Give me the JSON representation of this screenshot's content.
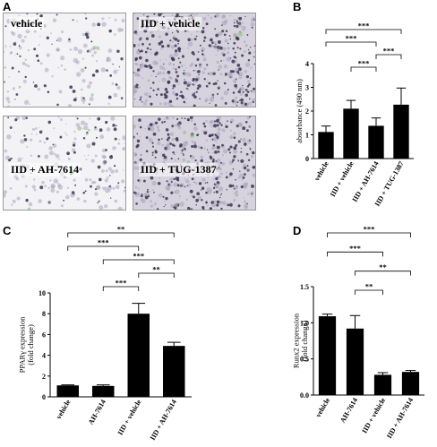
{
  "panel_letters": {
    "a": "A",
    "b": "B",
    "c": "C",
    "d": "D"
  },
  "images": [
    {
      "label": "vehicle",
      "density": 0.25
    },
    {
      "label": "IID + vehicle",
      "density": 1.0
    },
    {
      "label": "IID + AH-7614",
      "density": 0.35
    },
    {
      "label": "IID + TUG-1387",
      "density": 1.0
    }
  ],
  "chart_data": [
    {
      "panel": "B",
      "type": "bar",
      "title": "",
      "ylabel": "absorbance (490 nm)",
      "ylim": [
        0,
        4
      ],
      "yticks": [
        "0",
        "1",
        "2",
        "3",
        "4"
      ],
      "categories": [
        "vehicle",
        "IID + vehicle",
        "IID + AH-7614",
        "IID + TUG-1387"
      ],
      "values": [
        1.12,
        2.1,
        1.38,
        2.27
      ],
      "errors": [
        0.25,
        0.35,
        0.33,
        0.7
      ],
      "significance": [
        {
          "from": 0,
          "to": 3,
          "label": "***"
        },
        {
          "from": 0,
          "to": 2,
          "label": "***"
        },
        {
          "from": 2,
          "to": 3,
          "label": "***"
        },
        {
          "from": 1,
          "to": 2,
          "label": "***"
        }
      ]
    },
    {
      "panel": "C",
      "type": "bar",
      "title": "",
      "ylabel": "PPARγ expression (fold change)",
      "ylim": [
        0,
        10
      ],
      "yticks": [
        "0",
        "2",
        "4",
        "6",
        "8",
        "10"
      ],
      "categories": [
        "vehicle",
        "AH-7614",
        "IID + vehicle",
        "IID + AH-7614"
      ],
      "values": [
        1.1,
        1.05,
        8.0,
        4.9
      ],
      "errors": [
        0.05,
        0.1,
        1.0,
        0.35
      ],
      "significance": [
        {
          "from": 0,
          "to": 3,
          "label": "**"
        },
        {
          "from": 0,
          "to": 2,
          "label": "***"
        },
        {
          "from": 1,
          "to": 3,
          "label": "***"
        },
        {
          "from": 2,
          "to": 3,
          "label": "**"
        },
        {
          "from": 1,
          "to": 2,
          "label": "***"
        }
      ]
    },
    {
      "panel": "D",
      "type": "bar",
      "title": "",
      "ylabel": "Runx2 expression (fold change)",
      "ylim": [
        0,
        1.5
      ],
      "yticks": [
        "0.0",
        "0.5",
        "1.0",
        "1.5"
      ],
      "categories": [
        "vehicle",
        "AH-7614",
        "IID + vehicle",
        "IID + AH-7614"
      ],
      "values": [
        1.09,
        0.92,
        0.28,
        0.32
      ],
      "errors": [
        0.03,
        0.18,
        0.03,
        0.02
      ],
      "significance": [
        {
          "from": 0,
          "to": 3,
          "label": "***"
        },
        {
          "from": 0,
          "to": 2,
          "label": "***"
        },
        {
          "from": 1,
          "to": 3,
          "label": "**"
        },
        {
          "from": 1,
          "to": 2,
          "label": "**"
        }
      ]
    }
  ]
}
